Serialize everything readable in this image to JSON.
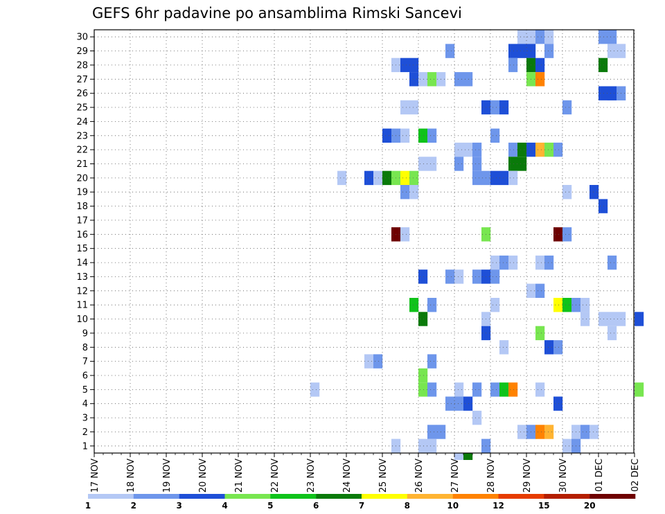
{
  "chart_data": {
    "type": "heatmap",
    "title": "GEFS 6hr padavine po ansamblima Rimski Sancevi",
    "xlabel": "",
    "ylabel": "",
    "x_ticks": [
      "17 NOV",
      "18 NOV",
      "19 NOV",
      "20 NOV",
      "21 NOV",
      "22 NOV",
      "23 NOV",
      "24 NOV",
      "25 NOV",
      "26 NOV",
      "27 NOV",
      "28 NOV",
      "29 NOV",
      "30 NOV",
      "01 DEC",
      "02 DEC"
    ],
    "y_ticks": [
      1,
      2,
      3,
      4,
      5,
      6,
      7,
      8,
      9,
      10,
      11,
      12,
      13,
      14,
      15,
      16,
      17,
      18,
      19,
      20,
      21,
      22,
      23,
      24,
      25,
      26,
      27,
      28,
      29,
      30
    ],
    "x_step_hours": 6,
    "grid": true,
    "colorbar": {
      "labels": [
        "1",
        "2",
        "3",
        "4",
        "5",
        "6",
        "7",
        "8",
        "10",
        "12",
        "15",
        "20"
      ],
      "colors": [
        "#b4c8f5",
        "#6e96eb",
        "#1e4fd7",
        "#78e650",
        "#0fc31a",
        "#0a7a0a",
        "#ffff00",
        "#ffb432",
        "#ff8200",
        "#e63c00",
        "#b41e00",
        "#6e0000"
      ]
    },
    "cells": [
      {
        "m": 30,
        "s": [
          "28 NOV",
          4,
          "b"
        ],
        "v": 1
      },
      {
        "m": 30,
        "s": [
          "28 NOV",
          5,
          "b"
        ],
        "v": 1
      },
      {
        "m": 30,
        "s": [
          "28 NOV",
          6,
          "b"
        ],
        "v": 2
      },
      {
        "m": 30,
        "s": [
          "28 NOV",
          7,
          "b"
        ],
        "v": 1
      },
      {
        "m": 30,
        "s": [
          "30 NOV",
          5,
          "b"
        ],
        "v": 2
      },
      {
        "m": 30,
        "s": [
          "30 NOV",
          6,
          "b"
        ],
        "v": 2
      },
      {
        "m": 29,
        "s": [
          "26 NOV",
          4,
          "b"
        ],
        "v": 2
      },
      {
        "m": 29,
        "s": [
          "28 NOV",
          3,
          "b"
        ],
        "v": 3
      },
      {
        "m": 29,
        "s": [
          "28 NOV",
          4,
          "b"
        ],
        "v": 3
      },
      {
        "m": 29,
        "s": [
          "28 NOV",
          5,
          "b"
        ],
        "v": 3
      },
      {
        "m": 29,
        "s": [
          "29 NOV",
          3,
          "b"
        ],
        "v": 2
      },
      {
        "m": 29,
        "s": [
          "30 NOV",
          6,
          "b"
        ],
        "v": 1
      },
      {
        "m": 29,
        "s": [
          "30 NOV",
          7,
          "b"
        ],
        "v": 1
      },
      {
        "m": 28,
        "s": [
          "25 NOV",
          2,
          "b"
        ],
        "v": 1
      },
      {
        "m": 28,
        "s": [
          "25 NOV",
          3,
          "b"
        ],
        "v": 3
      },
      {
        "m": 28,
        "s": [
          "25 NOV",
          4,
          "b"
        ],
        "v": 3
      },
      {
        "m": 28,
        "s": [
          "28 NOV",
          3,
          "b"
        ],
        "v": 2
      },
      {
        "m": 28,
        "s": [
          "29 NOV",
          1,
          "b"
        ],
        "v": 6
      },
      {
        "m": 28,
        "s": [
          "29 NOV",
          2,
          "b"
        ],
        "v": 3
      },
      {
        "m": 28,
        "s": [
          "30 NOV",
          5,
          "b"
        ],
        "v": 6
      },
      {
        "m": 27,
        "s": [
          "25 NOV",
          4,
          "b"
        ],
        "v": 3
      },
      {
        "m": 27,
        "s": [
          "26 NOV",
          1,
          "b"
        ],
        "v": 1
      },
      {
        "m": 27,
        "s": [
          "26 NOV",
          2,
          "b"
        ],
        "v": 4
      },
      {
        "m": 27,
        "s": [
          "26 NOV",
          3,
          "b"
        ],
        "v": 1
      },
      {
        "m": 27,
        "s": [
          "27 NOV",
          1,
          "b"
        ],
        "v": 2
      },
      {
        "m": 27,
        "s": [
          "27 NOV",
          2,
          "b"
        ],
        "v": 2
      },
      {
        "m": 27,
        "s": [
          "29 NOV",
          1,
          "b"
        ],
        "v": 4
      },
      {
        "m": 27,
        "s": [
          "29 NOV",
          2,
          "b"
        ],
        "v": 10
      },
      {
        "m": 26,
        "s": [
          "30 NOV",
          6,
          "b"
        ],
        "v": 2
      },
      {
        "m": 26,
        "s": [
          "30 NOV",
          7,
          "b"
        ],
        "v": 2
      },
      {
        "m": 26,
        "s": [
          "01 DEC",
          1,
          "b"
        ],
        "v": 3
      },
      {
        "m": 26,
        "s": [
          "01 DEC",
          2,
          "b"
        ],
        "v": 3
      },
      {
        "m": 26,
        "s": [
          "01 DEC",
          3,
          "b"
        ],
        "v": 2
      },
      {
        "m": 25,
        "s": [
          "25 NOV",
          3,
          "b"
        ],
        "v": 1
      },
      {
        "m": 25,
        "s": [
          "25 NOV",
          4,
          "b"
        ],
        "v": 1
      },
      {
        "m": 25,
        "s": [
          "27 NOV",
          4,
          "b"
        ],
        "v": 3
      },
      {
        "m": 25,
        "s": [
          "28 NOV",
          1,
          "b"
        ],
        "v": 2
      },
      {
        "m": 25,
        "s": [
          "28 NOV",
          2,
          "b"
        ],
        "v": 3
      },
      {
        "m": 25,
        "s": [
          "30 NOV",
          1,
          "b"
        ],
        "v": 2
      },
      {
        "m": 23,
        "s": [
          "25 NOV",
          1,
          "b"
        ],
        "v": 3
      },
      {
        "m": 23,
        "s": [
          "25 NOV",
          2,
          "b"
        ],
        "v": 2
      },
      {
        "m": 23,
        "s": [
          "25 NOV",
          3,
          "b"
        ],
        "v": 1
      },
      {
        "m": 23,
        "s": [
          "26 NOV",
          1,
          "b"
        ],
        "v": 5
      },
      {
        "m": 23,
        "s": [
          "26 NOV",
          2,
          "b"
        ],
        "v": 2
      },
      {
        "m": 23,
        "s": [
          "28 NOV",
          1,
          "b"
        ],
        "v": 2
      },
      {
        "m": 22,
        "s": [
          "27 NOV",
          1,
          "b"
        ],
        "v": 1
      },
      {
        "m": 22,
        "s": [
          "27 NOV",
          2,
          "b"
        ],
        "v": 1
      },
      {
        "m": 22,
        "s": [
          "27 NOV",
          3,
          "b"
        ],
        "v": 2
      },
      {
        "m": 22,
        "s": [
          "28 NOV",
          3,
          "b"
        ],
        "v": 2
      },
      {
        "m": 22,
        "s": [
          "28 NOV",
          4,
          "b"
        ],
        "v": 6
      },
      {
        "m": 22,
        "s": [
          "29 NOV",
          1,
          "b"
        ],
        "v": 3
      },
      {
        "m": 22,
        "s": [
          "29 NOV",
          2,
          "b"
        ],
        "v": 8
      },
      {
        "m": 22,
        "s": [
          "29 NOV",
          3,
          "b"
        ],
        "v": 4
      },
      {
        "m": 22,
        "s": [
          "29 NOV",
          4,
          "b"
        ],
        "v": 2
      },
      {
        "m": 21,
        "s": [
          "26 NOV",
          1,
          "b"
        ],
        "v": 1
      },
      {
        "m": 21,
        "s": [
          "26 NOV",
          2,
          "b"
        ],
        "v": 1
      },
      {
        "m": 21,
        "s": [
          "27 NOV",
          1,
          "b"
        ],
        "v": 2
      },
      {
        "m": 21,
        "s": [
          "27 NOV",
          3,
          "b"
        ],
        "v": 2
      },
      {
        "m": 21,
        "s": [
          "28 NOV",
          3,
          "b"
        ],
        "v": 6
      },
      {
        "m": 21,
        "s": [
          "28 NOV",
          4,
          "b"
        ],
        "v": 6
      },
      {
        "m": 20,
        "s": [
          "23 NOV",
          4,
          "b"
        ],
        "v": 1
      },
      {
        "m": 20,
        "s": [
          "24 NOV",
          3,
          "b"
        ],
        "v": 3
      },
      {
        "m": 20,
        "s": [
          "24 NOV",
          4,
          "b"
        ],
        "v": 1
      },
      {
        "m": 20,
        "s": [
          "25 NOV",
          1,
          "b"
        ],
        "v": 6
      },
      {
        "m": 20,
        "s": [
          "25 NOV",
          2,
          "b"
        ],
        "v": 4
      },
      {
        "m": 20,
        "s": [
          "25 NOV",
          3,
          "b"
        ],
        "v": 7
      },
      {
        "m": 20,
        "s": [
          "25 NOV",
          4,
          "b"
        ],
        "v": 4
      },
      {
        "m": 20,
        "s": [
          "27 NOV",
          3,
          "b"
        ],
        "v": 2
      },
      {
        "m": 20,
        "s": [
          "27 NOV",
          4,
          "b"
        ],
        "v": 2
      },
      {
        "m": 20,
        "s": [
          "28 NOV",
          1,
          "b"
        ],
        "v": 3
      },
      {
        "m": 20,
        "s": [
          "28 NOV",
          2,
          "b"
        ],
        "v": 3
      },
      {
        "m": 20,
        "s": [
          "28 NOV",
          3,
          "b"
        ],
        "v": 1
      },
      {
        "m": 19,
        "s": [
          "25 NOV",
          3,
          "b"
        ],
        "v": 2
      },
      {
        "m": 19,
        "s": [
          "25 NOV",
          4,
          "b"
        ],
        "v": 1
      },
      {
        "m": 19,
        "s": [
          "30 NOV",
          1,
          "b"
        ],
        "v": 1
      },
      {
        "m": 19,
        "s": [
          "30 NOV",
          4,
          "b"
        ],
        "v": 3
      },
      {
        "m": 18,
        "s": [
          "01 DEC",
          1,
          "b"
        ],
        "v": 3
      },
      {
        "m": 16,
        "s": [
          "25 NOV",
          2,
          "b"
        ],
        "v": 20
      },
      {
        "m": 16,
        "s": [
          "25 NOV",
          3,
          "b"
        ],
        "v": 1
      },
      {
        "m": 16,
        "s": [
          "27 NOV",
          4,
          "b"
        ],
        "v": 4
      },
      {
        "m": 16,
        "s": [
          "29 NOV",
          4,
          "b"
        ],
        "v": 20
      },
      {
        "m": 16,
        "s": [
          "30 NOV",
          1,
          "b"
        ],
        "v": 2
      },
      {
        "m": 14,
        "s": [
          "28 NOV",
          1,
          "b"
        ],
        "v": 1
      },
      {
        "m": 14,
        "s": [
          "28 NOV",
          2,
          "b"
        ],
        "v": 2
      },
      {
        "m": 14,
        "s": [
          "28 NOV",
          3,
          "b"
        ],
        "v": 1
      },
      {
        "m": 14,
        "s": [
          "29 NOV",
          2,
          "b"
        ],
        "v": 1
      },
      {
        "m": 14,
        "s": [
          "29 NOV",
          3,
          "b"
        ],
        "v": 2
      },
      {
        "m": 14,
        "s": [
          "01 DEC",
          2,
          "b"
        ],
        "v": 2
      },
      {
        "m": 13,
        "s": [
          "26 NOV",
          1,
          "b"
        ],
        "v": 3
      },
      {
        "m": 13,
        "s": [
          "26 NOV",
          4,
          "b"
        ],
        "v": 2
      },
      {
        "m": 13,
        "s": [
          "27 NOV",
          1,
          "b"
        ],
        "v": 1
      },
      {
        "m": 13,
        "s": [
          "27 NOV",
          3,
          "b"
        ],
        "v": 2
      },
      {
        "m": 13,
        "s": [
          "27 NOV",
          4,
          "b"
        ],
        "v": 3
      },
      {
        "m": 13,
        "s": [
          "28 NOV",
          1,
          "b"
        ],
        "v": 2
      },
      {
        "m": 12,
        "s": [
          "29 NOV",
          1,
          "b"
        ],
        "v": 1
      },
      {
        "m": 12,
        "s": [
          "29 NOV",
          2,
          "b"
        ],
        "v": 2
      },
      {
        "m": 11,
        "s": [
          "25 NOV",
          4,
          "b"
        ],
        "v": 5
      },
      {
        "m": 11,
        "s": [
          "26 NOV",
          2,
          "b"
        ],
        "v": 2
      },
      {
        "m": 11,
        "s": [
          "28 NOV",
          1,
          "b"
        ],
        "v": 1
      },
      {
        "m": 11,
        "s": [
          "29 NOV",
          4,
          "b"
        ],
        "v": 7
      },
      {
        "m": 11,
        "s": [
          "30 NOV",
          1,
          "b"
        ],
        "v": 5
      },
      {
        "m": 11,
        "s": [
          "30 NOV",
          2,
          "b"
        ],
        "v": 2
      },
      {
        "m": 11,
        "s": [
          "30 NOV",
          3,
          "b"
        ],
        "v": 1
      },
      {
        "m": 10,
        "s": [
          "26 NOV",
          1,
          "b"
        ],
        "v": 6
      },
      {
        "m": 10,
        "s": [
          "27 NOV",
          4,
          "b"
        ],
        "v": 1
      },
      {
        "m": 10,
        "s": [
          "30 NOV",
          3,
          "b"
        ],
        "v": 1
      },
      {
        "m": 10,
        "s": [
          "01 DEC",
          1,
          "b"
        ],
        "v": 1
      },
      {
        "m": 10,
        "s": [
          "01 DEC",
          2,
          "b"
        ],
        "v": 1
      },
      {
        "m": 10,
        "s": [
          "01 DEC",
          3,
          "b"
        ],
        "v": 1
      },
      {
        "m": 10,
        "s": [
          "02 DEC",
          1,
          "b"
        ],
        "v": 3
      },
      {
        "m": 9,
        "s": [
          "27 NOV",
          4,
          "b"
        ],
        "v": 3
      },
      {
        "m": 9,
        "s": [
          "29 NOV",
          2,
          "b"
        ],
        "v": 4
      },
      {
        "m": 9,
        "s": [
          "01 DEC",
          2,
          "b"
        ],
        "v": 1
      },
      {
        "m": 8,
        "s": [
          "28 NOV",
          2,
          "b"
        ],
        "v": 1
      },
      {
        "m": 8,
        "s": [
          "29 NOV",
          3,
          "b"
        ],
        "v": 3
      },
      {
        "m": 8,
        "s": [
          "29 NOV",
          4,
          "b"
        ],
        "v": 2
      },
      {
        "m": 7,
        "s": [
          "24 NOV",
          3,
          "b"
        ],
        "v": 1
      },
      {
        "m": 7,
        "s": [
          "24 NOV",
          4,
          "b"
        ],
        "v": 2
      },
      {
        "m": 7,
        "s": [
          "26 NOV",
          2,
          "b"
        ],
        "v": 2
      },
      {
        "m": 6,
        "s": [
          "26 NOV",
          1,
          "b"
        ],
        "v": 4
      },
      {
        "m": 5,
        "s": [
          "23 NOV",
          1,
          "b"
        ],
        "v": 1
      },
      {
        "m": 5,
        "s": [
          "26 NOV",
          1,
          "b"
        ],
        "v": 4
      },
      {
        "m": 5,
        "s": [
          "26 NOV",
          2,
          "b"
        ],
        "v": 2
      },
      {
        "m": 5,
        "s": [
          "27 NOV",
          1,
          "b"
        ],
        "v": 1
      },
      {
        "m": 5,
        "s": [
          "27 NOV",
          3,
          "b"
        ],
        "v": 2
      },
      {
        "m": 5,
        "s": [
          "28 NOV",
          1,
          "b"
        ],
        "v": 2
      },
      {
        "m": 5,
        "s": [
          "28 NOV",
          2,
          "b"
        ],
        "v": 5
      },
      {
        "m": 5,
        "s": [
          "28 NOV",
          3,
          "b"
        ],
        "v": 10
      },
      {
        "m": 5,
        "s": [
          "29 NOV",
          2,
          "b"
        ],
        "v": 1
      },
      {
        "m": 5,
        "s": [
          "02 DEC",
          1,
          "b"
        ],
        "v": 4
      },
      {
        "m": 4,
        "s": [
          "26 NOV",
          4,
          "b"
        ],
        "v": 2
      },
      {
        "m": 4,
        "s": [
          "27 NOV",
          1,
          "b"
        ],
        "v": 2
      },
      {
        "m": 4,
        "s": [
          "27 NOV",
          2,
          "b"
        ],
        "v": 3
      },
      {
        "m": 4,
        "s": [
          "29 NOV",
          4,
          "b"
        ],
        "v": 3
      },
      {
        "m": 3,
        "s": [
          "27 NOV",
          3,
          "b"
        ],
        "v": 1
      },
      {
        "m": 2,
        "s": [
          "26 NOV",
          2,
          "b"
        ],
        "v": 2
      },
      {
        "m": 2,
        "s": [
          "26 NOV",
          3,
          "b"
        ],
        "v": 2
      },
      {
        "m": 2,
        "s": [
          "28 NOV",
          4,
          "b"
        ],
        "v": 1
      },
      {
        "m": 2,
        "s": [
          "29 NOV",
          1,
          "b"
        ],
        "v": 2
      },
      {
        "m": 2,
        "s": [
          "29 NOV",
          2,
          "b"
        ],
        "v": 10
      },
      {
        "m": 2,
        "s": [
          "29 NOV",
          3,
          "b"
        ],
        "v": 8
      },
      {
        "m": 2,
        "s": [
          "30 NOV",
          2,
          "b"
        ],
        "v": 1
      },
      {
        "m": 2,
        "s": [
          "30 NOV",
          3,
          "b"
        ],
        "v": 2
      },
      {
        "m": 2,
        "s": [
          "30 NOV",
          4,
          "b"
        ],
        "v": 1
      },
      {
        "m": 1,
        "s": [
          "25 NOV",
          2,
          "b"
        ],
        "v": 1
      },
      {
        "m": 1,
        "s": [
          "26 NOV",
          1,
          "b"
        ],
        "v": 1
      },
      {
        "m": 1,
        "s": [
          "26 NOV",
          2,
          "b"
        ],
        "v": 1
      },
      {
        "m": 1,
        "s": [
          "27 NOV",
          4,
          "b"
        ],
        "v": 2
      },
      {
        "m": 1,
        "s": [
          "30 NOV",
          1,
          "b"
        ],
        "v": 1
      },
      {
        "m": 1,
        "s": [
          "30 NOV",
          2,
          "b"
        ],
        "v": 2
      },
      {
        "m": 0,
        "s": [
          "27 NOV",
          1,
          "b"
        ],
        "v": 1
      },
      {
        "m": 0,
        "s": [
          "27 NOV",
          2,
          "b"
        ],
        "v": 6
      }
    ]
  }
}
